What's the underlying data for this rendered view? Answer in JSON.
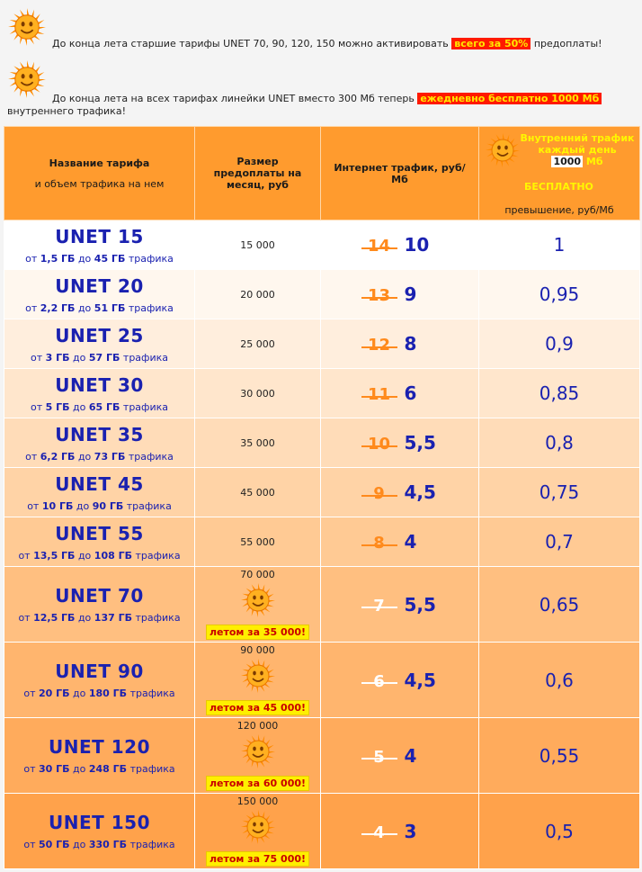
{
  "notices": [
    {
      "text_before": "До конца лета старшие тарифы UNET 70, 90, 120, 150 можно активировать",
      "highlight": "всего за 50%",
      "text_after": "предоплаты!"
    },
    {
      "text_before": "До конца лета на всех тарифах линейки UNET вместо 300 Мб теперь",
      "highlight": "ежедневно бесплатно 1000 Мб",
      "text_after": "внутреннего трафика!"
    }
  ],
  "table": {
    "headers": {
      "name_title": "Название тарифа",
      "name_sub": "и объем трафика на нем",
      "prepay": "Размер предоплаты на месяц, руб",
      "internet": "Интернет трафик, руб/Мб",
      "internal_line1": "Внутренний трафик",
      "internal_line2": "каждый день",
      "internal_amount": "1000",
      "internal_unit": "Мб",
      "internal_free": "БЕСПЛАТНО",
      "overage": "превышение, руб/Мб"
    },
    "rows": [
      {
        "name": "UNET 15",
        "from_label": "от",
        "from": "1,5 ГБ",
        "to_label": "до",
        "to": "45 ГБ",
        "suffix": "трафика",
        "prepay": "15 000",
        "old_price": "14",
        "new_price": "10",
        "overage": "1",
        "promo": null
      },
      {
        "name": "UNET 20",
        "from_label": "от",
        "from": "2,2 ГБ",
        "to_label": "до",
        "to": "51 ГБ",
        "suffix": "трафика",
        "prepay": "20 000",
        "old_price": "13",
        "new_price": "9",
        "overage": "0,95",
        "promo": null
      },
      {
        "name": "UNET 25",
        "from_label": "от",
        "from": "3 ГБ",
        "to_label": "до",
        "to": "57 ГБ",
        "suffix": "трафика",
        "prepay": "25 000",
        "old_price": "12",
        "new_price": "8",
        "overage": "0,9",
        "promo": null
      },
      {
        "name": "UNET 30",
        "from_label": "от",
        "from": "5 ГБ",
        "to_label": "до",
        "to": "65 ГБ",
        "suffix": "трафика",
        "prepay": "30 000",
        "old_price": "11",
        "new_price": "6",
        "overage": "0,85",
        "promo": null
      },
      {
        "name": "UNET 35",
        "from_label": "от",
        "from": "6,2 ГБ",
        "to_label": "до",
        "to": "73 ГБ",
        "suffix": "трафика",
        "prepay": "35 000",
        "old_price": "10",
        "new_price": "5,5",
        "overage": "0,8",
        "promo": null
      },
      {
        "name": "UNET 45",
        "from_label": "от",
        "from": "10 ГБ",
        "to_label": "до",
        "to": "90 ГБ",
        "suffix": "трафика",
        "prepay": "45 000",
        "old_price": "9",
        "new_price": "4,5",
        "overage": "0,75",
        "promo": null
      },
      {
        "name": "UNET 55",
        "from_label": "от",
        "from": "13,5 ГБ",
        "to_label": "до",
        "to": "108 ГБ",
        "suffix": "трафика",
        "prepay": "55 000",
        "old_price": "8",
        "new_price": "4",
        "overage": "0,7",
        "promo": null
      },
      {
        "name": "UNET 70",
        "from_label": "от",
        "from": "12,5 ГБ",
        "to_label": "до",
        "to": "137 ГБ",
        "suffix": "трафика",
        "prepay": "70 000",
        "old_price": "7",
        "new_price": "5,5",
        "overage": "0,65",
        "promo": {
          "label": "летом за",
          "amount": "35 000!"
        }
      },
      {
        "name": "UNET 90",
        "from_label": "от",
        "from": "20 ГБ",
        "to_label": "до",
        "to": "180 ГБ",
        "suffix": "трафика",
        "prepay": "90 000",
        "old_price": "6",
        "new_price": "4,5",
        "overage": "0,6",
        "promo": {
          "label": "летом за",
          "amount": "45 000!"
        }
      },
      {
        "name": "UNET 120",
        "from_label": "от",
        "from": "30 ГБ",
        "to_label": "до",
        "to": "248 ГБ",
        "suffix": "трафика",
        "prepay": "120 000",
        "old_price": "5",
        "new_price": "4",
        "overage": "0,55",
        "promo": {
          "label": "летом за",
          "amount": "60 000!"
        }
      },
      {
        "name": "UNET 150",
        "from_label": "от",
        "from": "50 ГБ",
        "to_label": "до",
        "to": "330 ГБ",
        "suffix": "трафика",
        "prepay": "150 000",
        "old_price": "4",
        "new_price": "3",
        "overage": "0,5",
        "promo": {
          "label": "летом за",
          "amount": "75 000!"
        }
      }
    ],
    "row_colors": [
      "#ffffff",
      "#fff7ee",
      "#ffeedd",
      "#ffe6cc",
      "#ffdcb8",
      "#ffd3a6",
      "#ffca94",
      "#ffbf80",
      "#ffb56e",
      "#ffab5c",
      "#ffa24b"
    ],
    "header_color": "#ff9b2e"
  },
  "icons": {
    "sun": "smiling-sun-icon"
  }
}
